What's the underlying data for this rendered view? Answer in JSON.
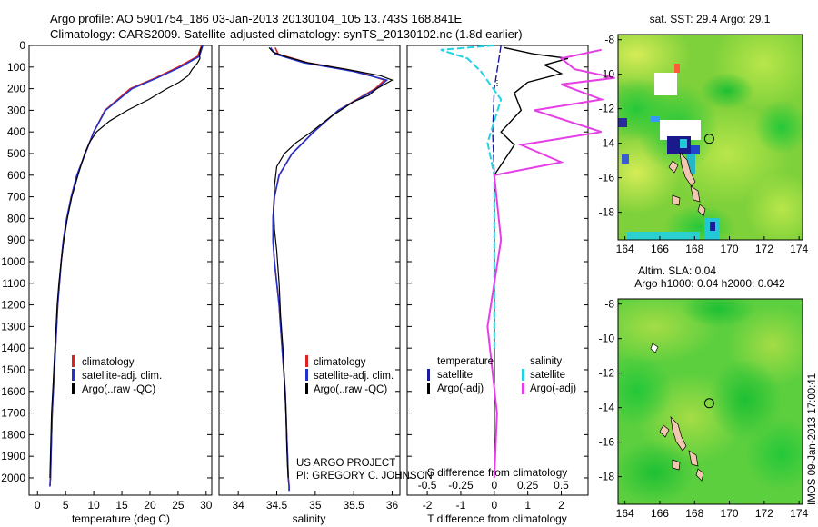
{
  "title_lines": [
    "Argo profile: AO 5901754_186 03-Jan-2013 20130104_105 13.743S 168.841E",
    "Climatology: CARS2009. Satellite-adjusted climatology: synTS_20130102.nc (1.8d earlier)"
  ],
  "colors": {
    "climatology": "#dd2222",
    "satellite_adj": "#2233cc",
    "argo": "#000000",
    "temp_satellite": "#1a1a9a",
    "sal_satellite": "#22d3e6",
    "sal_argo": "#e63ee6"
  },
  "chart_data": [
    {
      "type": "line",
      "panel": "temperature",
      "xlabel": "temperature (deg C)",
      "ylabel": "",
      "xlim": [
        -1.5,
        31
      ],
      "ylim": [
        2080,
        0
      ],
      "x_ticks": [
        0,
        5,
        10,
        15,
        20,
        25,
        30
      ],
      "y_ticks": [
        0,
        100,
        200,
        300,
        400,
        500,
        600,
        700,
        800,
        900,
        1000,
        1100,
        1200,
        1300,
        1400,
        1500,
        1600,
        1700,
        1800,
        1900,
        2000
      ],
      "legend": [
        "climatology",
        "satellite-adj. clim.",
        "Argo(..raw -QC)"
      ],
      "series": [
        {
          "name": "climatology",
          "color_key": "climatology",
          "x": [
            29.2,
            28.5,
            25.0,
            21.0,
            16.5,
            12.0,
            10.0,
            8.5,
            7.0,
            6.0,
            5.2,
            4.6,
            4.2,
            3.9,
            3.6,
            3.4,
            3.2,
            3.0,
            2.8,
            2.6,
            2.5,
            2.4,
            2.3,
            2.2
          ],
          "y": [
            0,
            50,
            100,
            150,
            200,
            300,
            400,
            500,
            600,
            700,
            800,
            900,
            1000,
            1100,
            1200,
            1300,
            1400,
            1500,
            1600,
            1700,
            1800,
            1900,
            2000,
            2040
          ]
        },
        {
          "name": "satellite-adj. clim.",
          "color_key": "satellite_adj",
          "x": [
            29.4,
            28.8,
            25.4,
            21.3,
            16.8,
            12.1,
            10.0,
            8.5,
            7.0,
            6.0,
            5.2,
            4.6,
            4.2,
            3.9,
            3.6,
            3.4,
            3.2,
            3.0,
            2.8,
            2.6,
            2.5,
            2.4,
            2.3,
            2.2
          ],
          "y": [
            0,
            50,
            100,
            150,
            200,
            300,
            400,
            500,
            600,
            700,
            800,
            900,
            1000,
            1100,
            1200,
            1300,
            1400,
            1500,
            1600,
            1700,
            1800,
            1900,
            2000,
            2040
          ]
        },
        {
          "name": "Argo(..raw -QC)",
          "color_key": "argo",
          "x": [
            29.2,
            29.0,
            28.8,
            28.9,
            28.5,
            27.5,
            26.8,
            25.2,
            23.0,
            19.8,
            16.0,
            12.8,
            10.5,
            9.2,
            8.4,
            7.2,
            6.1,
            5.3,
            4.7,
            4.2,
            3.8,
            3.5,
            3.3,
            3.1,
            2.9,
            2.7,
            2.5,
            2.4,
            2.3,
            2.2
          ],
          "y": [
            5,
            20,
            40,
            60,
            80,
            110,
            140,
            170,
            200,
            250,
            300,
            350,
            400,
            450,
            500,
            600,
            700,
            800,
            900,
            1000,
            1100,
            1200,
            1300,
            1400,
            1500,
            1600,
            1700,
            1800,
            1900,
            2000
          ]
        }
      ]
    },
    {
      "type": "line",
      "panel": "salinity",
      "xlabel": "salinity",
      "ylabel": "",
      "xlim": [
        33.75,
        36.1
      ],
      "ylim": [
        2080,
        0
      ],
      "x_ticks": [
        34,
        34.5,
        35,
        35.5,
        36
      ],
      "legend": [
        "climatology",
        "satellite-adj. clim.",
        "Argo(..raw -QC)"
      ],
      "annotations": [
        "US ARGO PROJECT",
        "PI: GREGORY C. JOHNSON"
      ],
      "series": [
        {
          "name": "climatology",
          "color_key": "climatology",
          "x": [
            34.48,
            34.52,
            34.9,
            35.55,
            35.9,
            35.78,
            35.3,
            34.98,
            34.7,
            34.53,
            34.47,
            34.45,
            34.45,
            34.47,
            34.5,
            34.53,
            34.55,
            34.57,
            34.59,
            34.61,
            34.62,
            34.63,
            34.64,
            34.65,
            34.66,
            34.66
          ],
          "y": [
            10,
            40,
            80,
            120,
            160,
            200,
            300,
            400,
            500,
            600,
            700,
            800,
            900,
            1000,
            1100,
            1200,
            1300,
            1400,
            1500,
            1600,
            1700,
            1800,
            1900,
            2000,
            2040,
            2060
          ]
        },
        {
          "name": "satellite-adj. clim.",
          "color_key": "satellite_adj",
          "x": [
            34.42,
            34.48,
            34.85,
            35.5,
            35.93,
            35.8,
            35.3,
            34.98,
            34.7,
            34.53,
            34.47,
            34.45,
            34.45,
            34.47,
            34.5,
            34.53,
            34.55,
            34.57,
            34.59,
            34.61,
            34.62,
            34.63,
            34.64,
            34.65,
            34.66,
            34.66
          ],
          "y": [
            10,
            40,
            80,
            120,
            160,
            200,
            300,
            400,
            500,
            600,
            700,
            800,
            900,
            1000,
            1100,
            1200,
            1300,
            1400,
            1500,
            1600,
            1700,
            1800,
            1900,
            2000,
            2040,
            2060
          ]
        },
        {
          "name": "Argo(..raw -QC)",
          "color_key": "argo",
          "x": [
            34.4,
            34.45,
            34.6,
            34.9,
            35.4,
            35.85,
            36.0,
            35.8,
            35.7,
            35.5,
            35.2,
            34.95,
            34.75,
            34.6,
            34.5,
            34.47,
            34.46,
            34.47,
            34.5,
            34.53,
            34.55,
            34.58,
            34.6,
            34.62,
            34.63,
            34.64,
            34.65
          ],
          "y": [
            10,
            30,
            50,
            80,
            110,
            140,
            160,
            200,
            230,
            260,
            330,
            400,
            450,
            500,
            560,
            650,
            750,
            850,
            950,
            1100,
            1250,
            1400,
            1550,
            1700,
            1850,
            1950,
            2000
          ]
        }
      ]
    },
    {
      "type": "line",
      "panel": "differences",
      "xlabel": "T difference from climatology",
      "xlabel2": "S difference from climatology",
      "xlim": [
        -2.6,
        2.8
      ],
      "ylim": [
        2080,
        0
      ],
      "x_ticks": [
        -2,
        -1,
        0,
        1,
        2
      ],
      "x_ticks_s": [
        -0.5,
        -0.25,
        0,
        0.25,
        0.5
      ],
      "legend_headers": [
        "temperature",
        "salinity"
      ],
      "legend": [
        "satellite",
        "Argo(-adj)",
        "satellite",
        "Argo(-adj)"
      ],
      "series": [
        {
          "name": "satellite",
          "group": "temperature",
          "color_key": "temp_satellite",
          "x": [
            0.2,
            0.1,
            0.0,
            -0.05,
            0.0,
            0.0,
            0.0,
            0.0
          ],
          "y": [
            0,
            100,
            200,
            400,
            600,
            1000,
            1500,
            2000
          ]
        },
        {
          "name": "Argo(-adj)",
          "group": "temperature",
          "color_key": "argo",
          "x": [
            0.3,
            1.2,
            2.2,
            1.5,
            2.0,
            1.0,
            0.6,
            0.8,
            0.2,
            0.6,
            0.0,
            0.0,
            0.0
          ],
          "y": [
            10,
            40,
            60,
            90,
            130,
            170,
            220,
            300,
            400,
            460,
            600,
            1200,
            2000
          ]
        },
        {
          "name": "satellite",
          "group": "salinity",
          "color_key": "sal_satellite",
          "x": [
            0.0,
            -0.4,
            -0.2,
            -0.1,
            0.05,
            -0.05,
            0.0,
            0.0,
            0.0
          ],
          "y": [
            0,
            20,
            60,
            120,
            250,
            450,
            600,
            1000,
            1400
          ]
        },
        {
          "name": "Argo(-adj)",
          "group": "salinity",
          "color_key": "sal_argo",
          "x": [
            0.8,
            0.5,
            0.6,
            0.9,
            0.5,
            0.8,
            0.3,
            0.8,
            0.2,
            0.5,
            0.0,
            0.05,
            -0.05,
            0.02,
            0.0
          ],
          "y": [
            20,
            60,
            110,
            150,
            180,
            250,
            300,
            400,
            460,
            540,
            600,
            900,
            1300,
            1700,
            2000
          ]
        }
      ]
    },
    {
      "type": "heatmap",
      "panel": "sst_map",
      "title": "sat. SST: 29.4 Argo: 29.1",
      "xlim": [
        163.6,
        174.2
      ],
      "ylim": [
        -19.6,
        -7.7
      ],
      "x_ticks": [
        164,
        166,
        168,
        170,
        172,
        174
      ],
      "y_ticks": [
        -8,
        -10,
        -12,
        -14,
        -16,
        -18
      ]
    },
    {
      "type": "heatmap",
      "panel": "sla_map",
      "title_lines": [
        "Altim. SLA: 0.04",
        "Argo h1000: 0.04 h2000: 0.042"
      ],
      "xlim": [
        163.6,
        174.2
      ],
      "ylim": [
        -19.6,
        -7.7
      ],
      "x_ticks": [
        164,
        166,
        168,
        170,
        172,
        174
      ],
      "y_ticks": [
        -8,
        -10,
        -12,
        -14,
        -16,
        -18
      ]
    }
  ],
  "argo_position": {
    "lon": 168.841,
    "lat": -13.743
  },
  "watermark": "IMOS 09-Jan-2013 17:00:41"
}
